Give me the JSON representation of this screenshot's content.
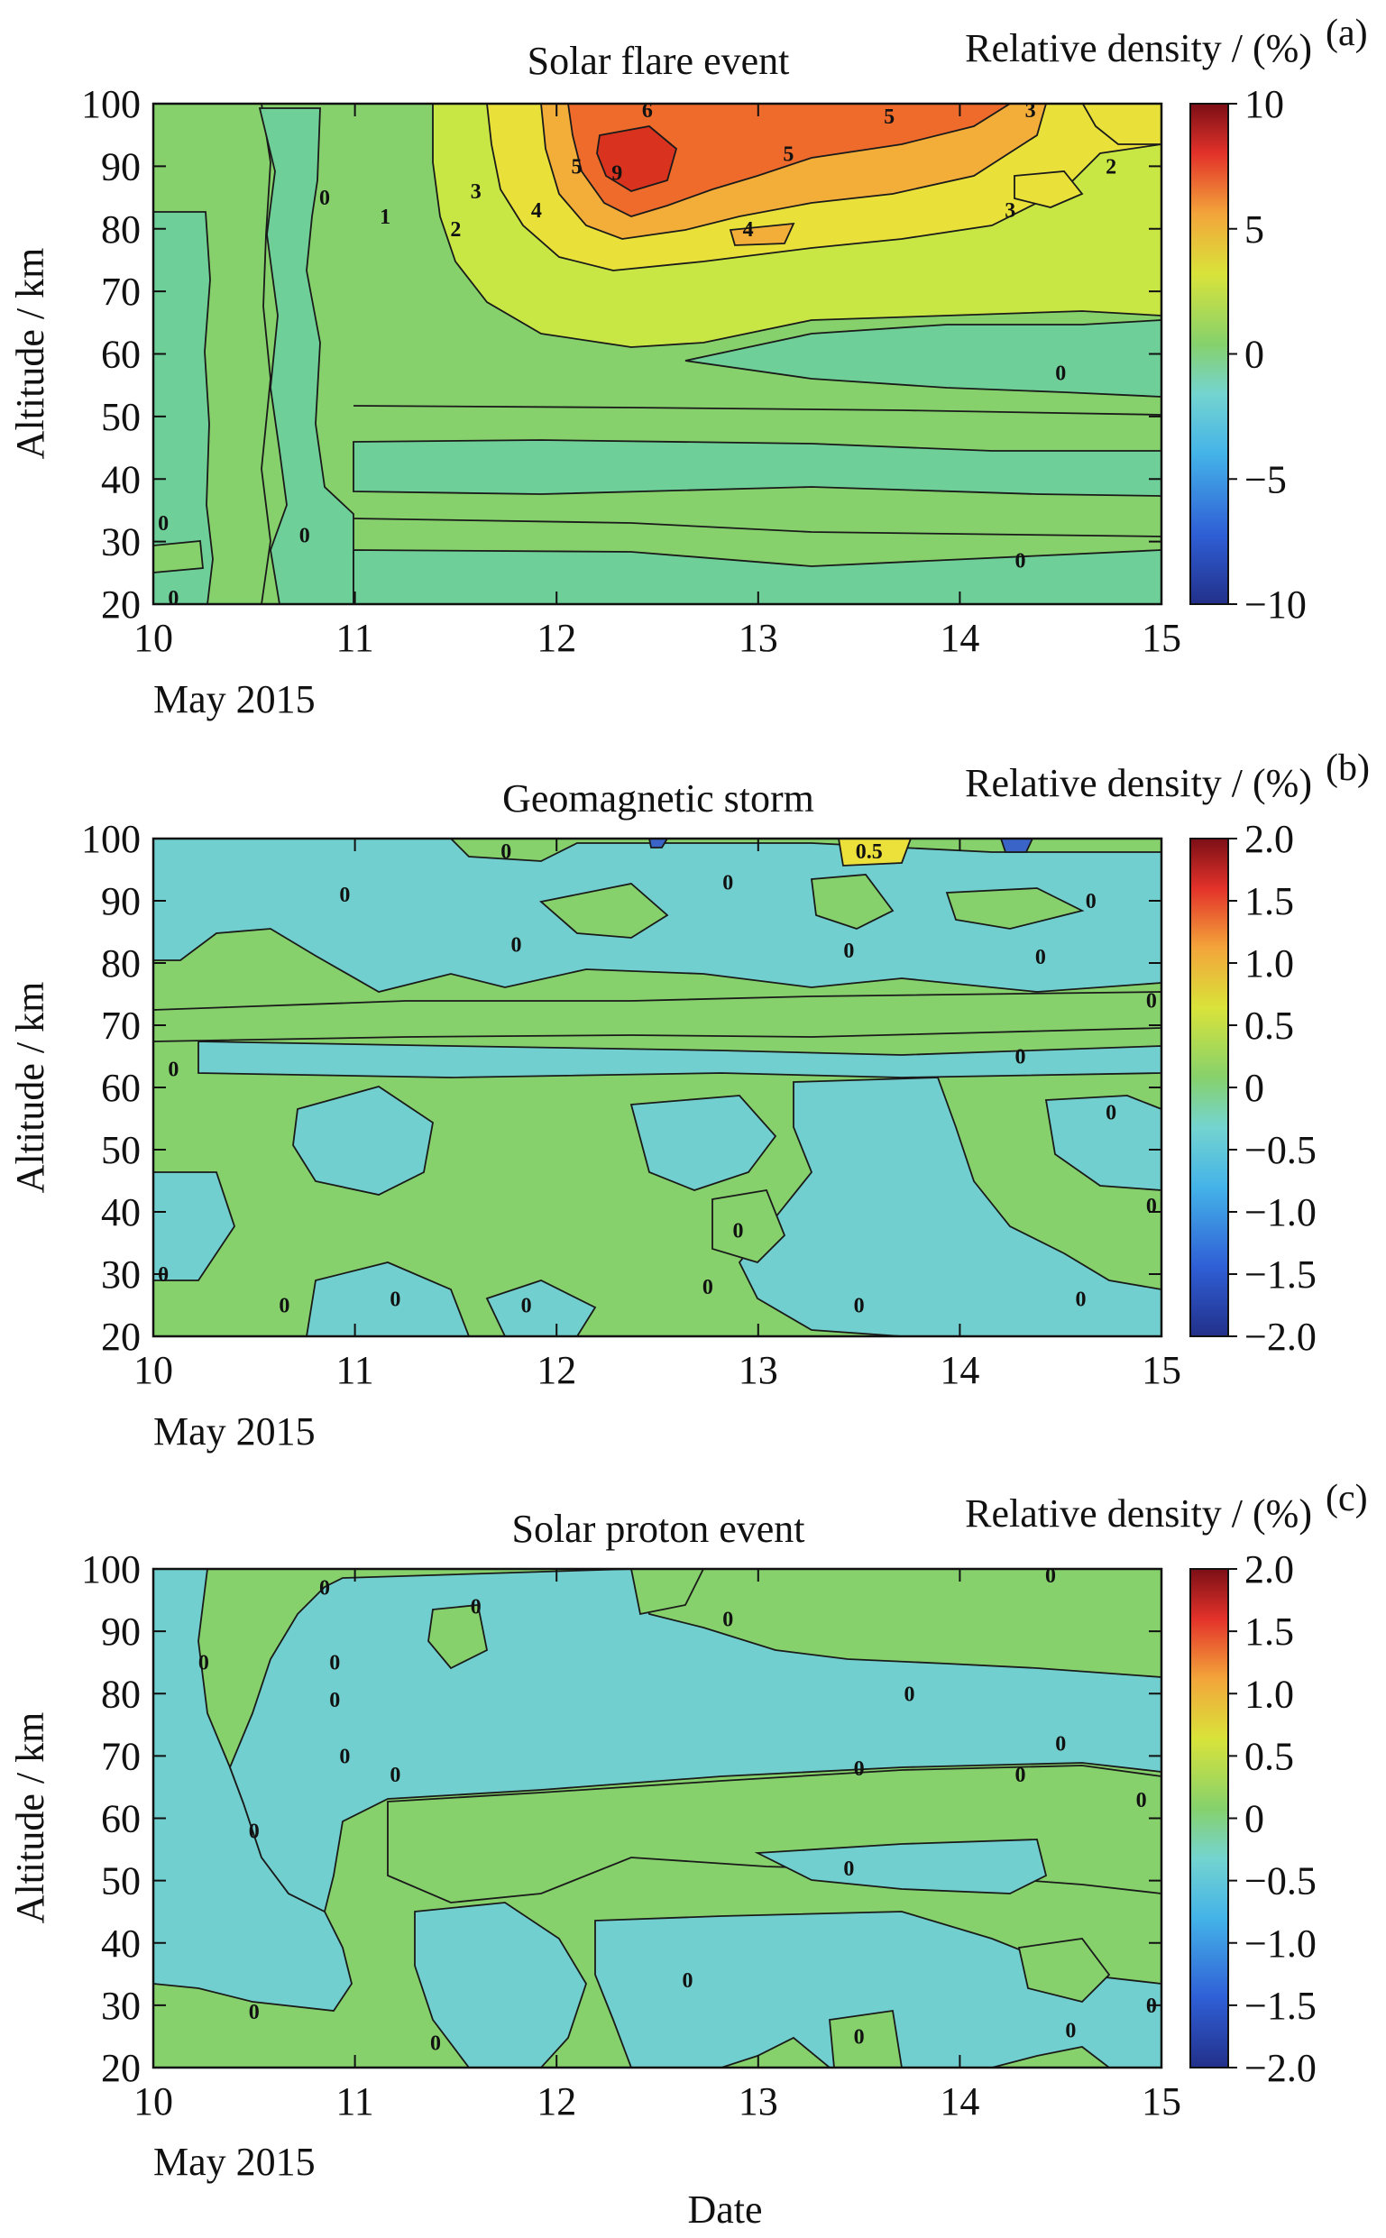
{
  "chart_data": [
    {
      "type": "heatmap",
      "panel_label": "(a)",
      "title": "Solar flare event",
      "xlabel": "May 2015",
      "ylabel": "Altitude / km",
      "colorbar_label": "Relative density / (%)",
      "x_ticks": [
        "10",
        "11",
        "12",
        "13",
        "14",
        "15"
      ],
      "y_ticks": [
        "20",
        "30",
        "40",
        "50",
        "60",
        "70",
        "80",
        "90",
        "100"
      ],
      "colorbar_ticks": [
        "10",
        "5",
        "0",
        "−5",
        "−10"
      ],
      "xlim": [
        10,
        15
      ],
      "ylim": [
        20,
        100
      ],
      "clim": [
        -10,
        10
      ],
      "contour_labels": [
        {
          "text": "6",
          "x": 12.45,
          "y": 99
        },
        {
          "text": "5",
          "x": 12.1,
          "y": 90
        },
        {
          "text": "9",
          "x": 12.3,
          "y": 89
        },
        {
          "text": "5",
          "x": 13.15,
          "y": 92
        },
        {
          "text": "5",
          "x": 13.65,
          "y": 98
        },
        {
          "text": "3",
          "x": 14.35,
          "y": 99
        },
        {
          "text": "2",
          "x": 14.75,
          "y": 90
        },
        {
          "text": "3",
          "x": 14.25,
          "y": 83
        },
        {
          "text": "4",
          "x": 12.95,
          "y": 80
        },
        {
          "text": "4",
          "x": 11.9,
          "y": 83
        },
        {
          "text": "3",
          "x": 11.6,
          "y": 86
        },
        {
          "text": "2",
          "x": 11.5,
          "y": 80
        },
        {
          "text": "1",
          "x": 11.15,
          "y": 82
        },
        {
          "text": "0",
          "x": 10.85,
          "y": 85
        },
        {
          "text": "0",
          "x": 14.5,
          "y": 57
        },
        {
          "text": "0",
          "x": 10.05,
          "y": 33
        },
        {
          "text": "0",
          "x": 10.1,
          "y": 21
        },
        {
          "text": "0",
          "x": 10.75,
          "y": 31
        },
        {
          "text": "0",
          "x": 14.3,
          "y": 27
        }
      ]
    },
    {
      "type": "heatmap",
      "panel_label": "(b)",
      "title": "Geomagnetic storm",
      "xlabel": "May 2015",
      "ylabel": "Altitude / km",
      "colorbar_label": "Relative density / (%)",
      "x_ticks": [
        "10",
        "11",
        "12",
        "13",
        "14",
        "15"
      ],
      "y_ticks": [
        "20",
        "30",
        "40",
        "50",
        "60",
        "70",
        "80",
        "90",
        "100"
      ],
      "colorbar_ticks": [
        "2.0",
        "1.5",
        "1.0",
        "0.5",
        "0",
        "−0.5",
        "−1.0",
        "−1.5",
        "−2.0"
      ],
      "xlim": [
        10,
        15
      ],
      "ylim": [
        20,
        100
      ],
      "clim": [
        -2,
        2
      ],
      "contour_labels": [
        {
          "text": "0.5",
          "x": 13.55,
          "y": 98
        },
        {
          "text": "0",
          "x": 11.75,
          "y": 98
        },
        {
          "text": "0",
          "x": 10.95,
          "y": 91
        },
        {
          "text": "0",
          "x": 12.85,
          "y": 93
        },
        {
          "text": "0",
          "x": 11.8,
          "y": 83
        },
        {
          "text": "0",
          "x": 13.45,
          "y": 82
        },
        {
          "text": "0",
          "x": 14.65,
          "y": 90
        },
        {
          "text": "0",
          "x": 14.4,
          "y": 81
        },
        {
          "text": "0",
          "x": 14.95,
          "y": 74
        },
        {
          "text": "0",
          "x": 14.3,
          "y": 65
        },
        {
          "text": "0",
          "x": 10.1,
          "y": 63
        },
        {
          "text": "0",
          "x": 14.75,
          "y": 56
        },
        {
          "text": "0",
          "x": 14.95,
          "y": 41
        },
        {
          "text": "0",
          "x": 12.9,
          "y": 37
        },
        {
          "text": "0",
          "x": 10.05,
          "y": 30
        },
        {
          "text": "0",
          "x": 10.65,
          "y": 25
        },
        {
          "text": "0",
          "x": 11.2,
          "y": 26
        },
        {
          "text": "0",
          "x": 11.85,
          "y": 25
        },
        {
          "text": "0",
          "x": 12.75,
          "y": 28
        },
        {
          "text": "0",
          "x": 13.5,
          "y": 25
        },
        {
          "text": "0",
          "x": 14.6,
          "y": 26
        }
      ]
    },
    {
      "type": "heatmap",
      "panel_label": "(c)",
      "title": "Solar proton event",
      "xlabel": "May 2015",
      "ylabel": "Altitude / km",
      "shared_xlabel": "Date",
      "colorbar_label": "Relative density / (%)",
      "x_ticks": [
        "10",
        "11",
        "12",
        "13",
        "14",
        "15"
      ],
      "y_ticks": [
        "20",
        "30",
        "40",
        "50",
        "60",
        "70",
        "80",
        "90",
        "100"
      ],
      "colorbar_ticks": [
        "2.0",
        "1.5",
        "1.0",
        "0.5",
        "0",
        "−0.5",
        "−1.0",
        "−1.5",
        "−2.0"
      ],
      "xlim": [
        10,
        15
      ],
      "ylim": [
        20,
        100
      ],
      "clim": [
        -2,
        2
      ],
      "contour_labels": [
        {
          "text": "0",
          "x": 10.85,
          "y": 97
        },
        {
          "text": "0",
          "x": 11.6,
          "y": 94
        },
        {
          "text": "0",
          "x": 12.85,
          "y": 92
        },
        {
          "text": "0",
          "x": 14.45,
          "y": 99
        },
        {
          "text": "0",
          "x": 10.25,
          "y": 85
        },
        {
          "text": "0",
          "x": 10.9,
          "y": 85
        },
        {
          "text": "0",
          "x": 10.9,
          "y": 79
        },
        {
          "text": "0",
          "x": 13.75,
          "y": 80
        },
        {
          "text": "0",
          "x": 10.95,
          "y": 70
        },
        {
          "text": "0",
          "x": 11.2,
          "y": 67
        },
        {
          "text": "0",
          "x": 13.5,
          "y": 68
        },
        {
          "text": "0",
          "x": 14.3,
          "y": 67
        },
        {
          "text": "0",
          "x": 14.5,
          "y": 72
        },
        {
          "text": "0",
          "x": 14.9,
          "y": 63
        },
        {
          "text": "0",
          "x": 10.5,
          "y": 58
        },
        {
          "text": "0",
          "x": 13.45,
          "y": 52
        },
        {
          "text": "0",
          "x": 12.65,
          "y": 34
        },
        {
          "text": "0",
          "x": 10.5,
          "y": 29
        },
        {
          "text": "0",
          "x": 11.4,
          "y": 24
        },
        {
          "text": "0",
          "x": 13.5,
          "y": 25
        },
        {
          "text": "0",
          "x": 14.55,
          "y": 26
        },
        {
          "text": "0",
          "x": 14.95,
          "y": 30
        }
      ]
    }
  ],
  "colors": {
    "background": "#ffffff",
    "panel_a": {
      "outer": "#86d16c",
      "zero_band": "#6fcf98",
      "yellow_green": "#c9e744",
      "yellow": "#e9e13a",
      "orange": "#f3ad39",
      "red_orange": "#ee6b2c",
      "red": "#d9331f"
    },
    "panel_b": {
      "green": "#86d16c",
      "cyan": "#72cfcf",
      "yellow": "#ece13a",
      "blue": "#3a64c8"
    },
    "panel_c": {
      "green": "#86d16c",
      "cyan": "#72cfcf"
    },
    "colormap": [
      "#22308a",
      "#2f5fd6",
      "#44b3e8",
      "#74d4d0",
      "#86d16c",
      "#d9e33a",
      "#f3a53a",
      "#e3322a",
      "#7b0f16"
    ]
  }
}
